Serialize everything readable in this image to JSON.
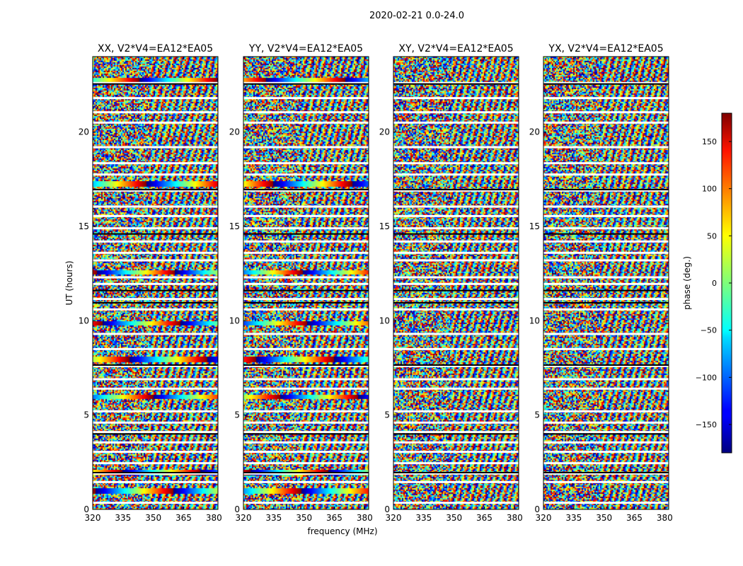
{
  "figure": {
    "suptitle": "2020-02-21 0.0-24.0",
    "xlabel": "frequency (MHz)",
    "ylabel": "UT (hours)"
  },
  "colorbar": {
    "label": "phase (deg.)",
    "range": [
      -180,
      180
    ],
    "ticks": [
      -150,
      -100,
      -50,
      0,
      50,
      100,
      150
    ],
    "tick_labels": [
      "−150",
      "−100",
      "−50",
      "0",
      "50",
      "100",
      "150"
    ],
    "colormap": "jet"
  },
  "chart_data": [
    {
      "type": "heatmap",
      "title": "XX, V2*V4=EA12*EA05",
      "xlim": [
        320,
        382
      ],
      "ylim": [
        0,
        24
      ],
      "xticks": [
        320,
        335,
        350,
        365,
        380
      ],
      "yticks": [
        0,
        5,
        10,
        15,
        20
      ],
      "value_range": [
        -180,
        180
      ],
      "smooth_bands_hours": [
        1.0,
        2.0,
        6.0,
        8.0,
        9.9,
        12.6,
        17.3,
        22.8
      ]
    },
    {
      "type": "heatmap",
      "title": "YY, V2*V4=EA12*EA05",
      "xlim": [
        320,
        382
      ],
      "ylim": [
        0,
        24
      ],
      "xticks": [
        320,
        335,
        350,
        365,
        380
      ],
      "yticks": [
        0,
        5,
        10,
        15,
        20
      ],
      "value_range": [
        -180,
        180
      ],
      "smooth_bands_hours": [
        1.0,
        2.0,
        6.0,
        8.0,
        9.9,
        12.6,
        17.3,
        22.8
      ]
    },
    {
      "type": "heatmap",
      "title": "XY, V2*V4=EA12*EA05",
      "xlim": [
        320,
        382
      ],
      "ylim": [
        0,
        24
      ],
      "xticks": [
        320,
        335,
        350,
        365,
        380
      ],
      "yticks": [
        0,
        5,
        10,
        15,
        20
      ],
      "value_range": [
        -180,
        180
      ],
      "smooth_bands_hours": []
    },
    {
      "type": "heatmap",
      "title": "YX, V2*V4=EA12*EA05",
      "xlim": [
        320,
        382
      ],
      "ylim": [
        0,
        24
      ],
      "xticks": [
        320,
        335,
        350,
        365,
        380
      ],
      "yticks": [
        0,
        5,
        10,
        15,
        20
      ],
      "value_range": [
        -180,
        180
      ],
      "smooth_bands_hours": []
    }
  ],
  "blank_gaps_hours": [
    0.35,
    1.45,
    1.9,
    2.45,
    3.05,
    3.55,
    4.1,
    4.6,
    5.2,
    6.4,
    6.9,
    7.6,
    8.5,
    9.3,
    10.6,
    11.15,
    11.95,
    12.3,
    13.2,
    13.6,
    14.2,
    14.9,
    15.55,
    16.05,
    16.9,
    17.75,
    18.35,
    19.2,
    20.5,
    21.05,
    21.8,
    22.6
  ],
  "dark_gaps_hours": [
    1.95,
    4.0,
    7.65,
    10.95,
    11.6,
    14.6,
    16.95,
    22.55
  ]
}
